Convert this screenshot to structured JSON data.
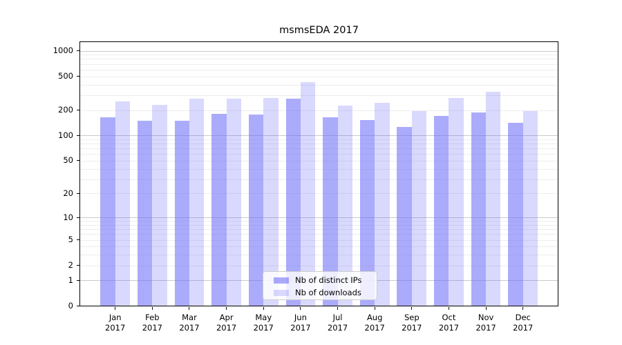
{
  "title": "msmsEDA 2017",
  "chart_data": {
    "type": "bar",
    "title": "msmsEDA 2017",
    "categories": [
      "Jan 2017",
      "Feb 2017",
      "Mar 2017",
      "Apr 2017",
      "May 2017",
      "Jun 2017",
      "Jul 2017",
      "Aug 2017",
      "Sep 2017",
      "Oct 2017",
      "Nov 2017",
      "Dec 2017"
    ],
    "series": [
      {
        "name": "Nb of distinct IPs",
        "color": "#6666fa",
        "alpha": 0.55,
        "values": [
          165,
          150,
          150,
          180,
          176,
          272,
          165,
          153,
          126,
          170,
          188,
          142
        ]
      },
      {
        "name": "Nb of downloads",
        "color": "#6666fa",
        "alpha": 0.25,
        "values": [
          253,
          230,
          272,
          272,
          277,
          425,
          227,
          245,
          195,
          276,
          330,
          195
        ]
      }
    ],
    "y_scale": "log10(1+y)",
    "y_ticks": [
      1000,
      500,
      200,
      100,
      50,
      20,
      10,
      5,
      2,
      1,
      0
    ],
    "ylim": [
      0,
      1300
    ],
    "grid": {
      "major": [
        1,
        10,
        100,
        1000
      ],
      "minor": [
        2,
        3,
        4,
        5,
        6,
        7,
        8,
        9,
        20,
        30,
        40,
        50,
        60,
        70,
        80,
        90,
        200,
        300,
        400,
        500,
        600,
        700,
        800,
        900
      ],
      "major_color": "#c9c9c9",
      "minor_color": "#ededed"
    },
    "legend": {
      "position": "lower center"
    }
  }
}
